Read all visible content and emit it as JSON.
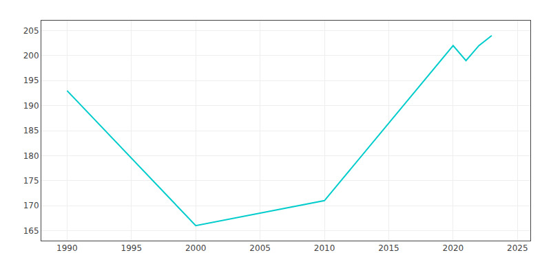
{
  "chart_data": {
    "type": "line",
    "x": [
      1990,
      2000,
      2010,
      2020,
      2021,
      2022,
      2023
    ],
    "values": [
      193,
      166,
      171,
      202,
      199,
      202,
      204
    ],
    "color": "#00CCCC",
    "xlim": [
      1988,
      2026
    ],
    "ylim": [
      163,
      207
    ],
    "xticks": [
      1990,
      1995,
      2000,
      2005,
      2010,
      2015,
      2020,
      2025
    ],
    "yticks": [
      165,
      170,
      175,
      180,
      185,
      190,
      195,
      200,
      205
    ],
    "grid": true
  }
}
